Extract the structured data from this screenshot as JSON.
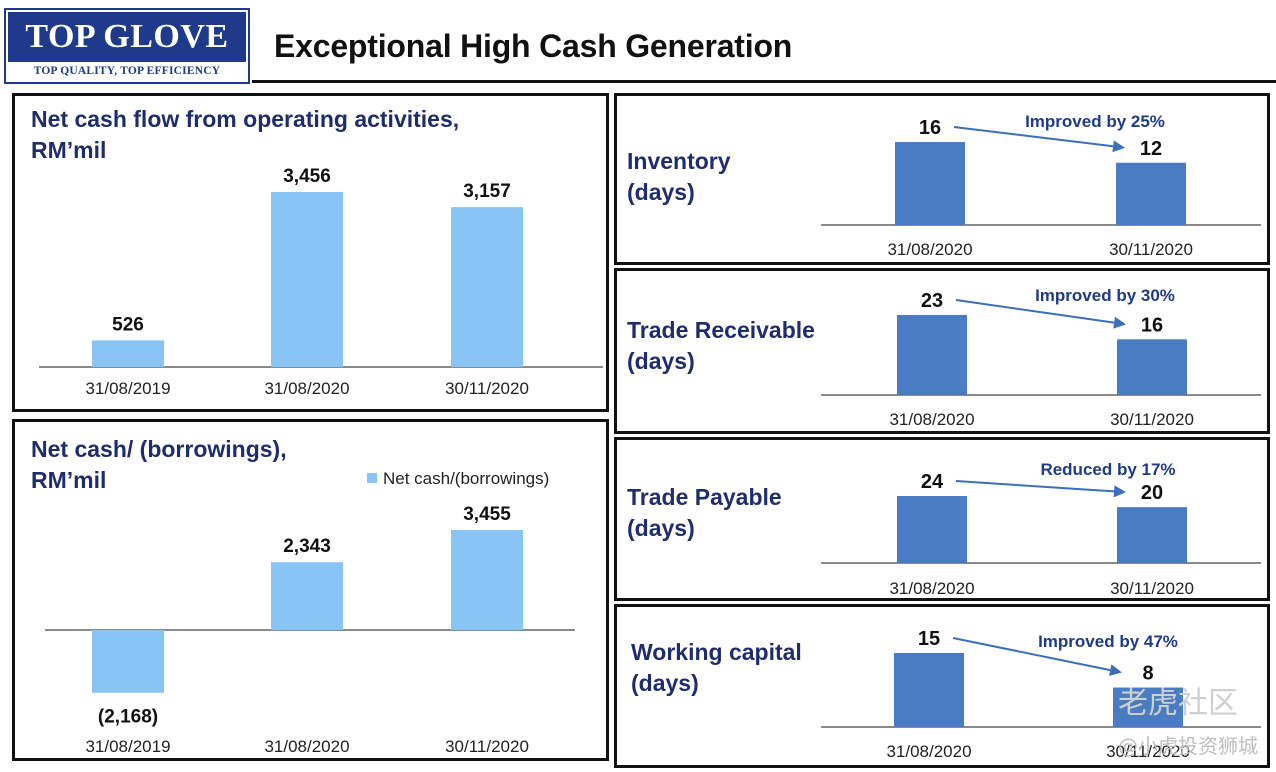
{
  "header": {
    "logo_main": "TOP GLOVE",
    "logo_tagline": "TOP QUALITY, TOP EFFICIENCY",
    "title": "Exceptional High Cash Generation"
  },
  "colors": {
    "light_bar": "#88c4f5",
    "dark_bar": "#4a7cc4",
    "arrow": "#3b6fba",
    "title_blue": "#1f2d6e"
  },
  "chart_data": [
    {
      "id": "operating",
      "type": "bar",
      "title": "Net cash flow from operating activities, RM’mil",
      "categories": [
        "31/08/2019",
        "31/08/2020",
        "30/11/2020"
      ],
      "values": [
        526,
        3456,
        3157
      ],
      "labels": [
        "526",
        "3,456",
        "3,157"
      ],
      "ylim": [
        0,
        3456
      ]
    },
    {
      "id": "netcash",
      "type": "bar",
      "title": "Net cash/ (borrowings), RM’mil",
      "legend": "Net cash/(borrowings)",
      "categories": [
        "31/08/2019",
        "31/08/2020",
        "30/11/2020"
      ],
      "values": [
        -2168,
        2343,
        3455
      ],
      "labels": [
        "(2,168)",
        "2,343",
        "3,455"
      ],
      "ylim": [
        -2168,
        3455
      ]
    },
    {
      "id": "inventory",
      "type": "bar",
      "title": "Inventory (days)",
      "categories": [
        "31/08/2020",
        "30/11/2020"
      ],
      "values": [
        16,
        12
      ],
      "labels": [
        "16",
        "12"
      ],
      "annotation": "Improved by 25%",
      "ylim": [
        0,
        16
      ]
    },
    {
      "id": "receivable",
      "type": "bar",
      "title": "Trade Receivable (days)",
      "categories": [
        "31/08/2020",
        "30/11/2020"
      ],
      "values": [
        23,
        16
      ],
      "labels": [
        "23",
        "16"
      ],
      "annotation": "Improved by 30%",
      "ylim": [
        0,
        23
      ]
    },
    {
      "id": "payable",
      "type": "bar",
      "title": "Trade Payable (days)",
      "categories": [
        "31/08/2020",
        "30/11/2020"
      ],
      "values": [
        24,
        20
      ],
      "labels": [
        "24",
        "20"
      ],
      "annotation": "Reduced by 17%",
      "ylim": [
        0,
        24
      ]
    },
    {
      "id": "workingcap",
      "type": "bar",
      "title": "Working capital (days)",
      "categories": [
        "31/08/2020",
        "30/11/2020"
      ],
      "values": [
        15,
        8
      ],
      "labels": [
        "15",
        "8"
      ],
      "annotation": "Improved by 47%",
      "ylim": [
        0,
        15
      ]
    }
  ],
  "panels": {
    "operating": {
      "title_line1": "Net cash flow from operating activities,",
      "title_line2": "RM’mil"
    },
    "netcash": {
      "title_line1": "Net cash/ (borrowings),",
      "title_line2": "RM’mil",
      "legend": "Net cash/(borrowings)"
    },
    "inventory": {
      "title_line1": "Inventory",
      "title_line2": "(days)"
    },
    "receivable": {
      "title_line1": "Trade Receivable",
      "title_line2": "(days)"
    },
    "payable": {
      "title_line1": "Trade Payable",
      "title_line2": "(days)"
    },
    "workingcap": {
      "title_line1": "Working capital",
      "title_line2": "(days)"
    }
  },
  "watermark": {
    "main": "老虎社区",
    "sub": "@小虎投资狮城"
  }
}
